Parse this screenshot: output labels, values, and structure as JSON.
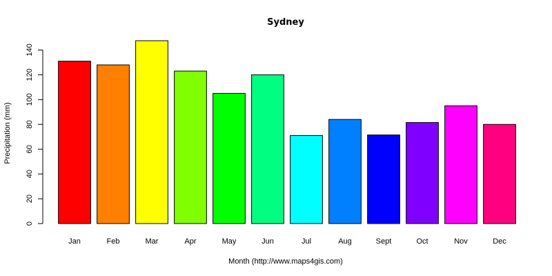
{
  "chart_data": {
    "type": "bar",
    "title": "Sydney",
    "xlabel": "Month (http://www.maps4gis.com)",
    "ylabel": "Precipitation (mm)",
    "categories": [
      "Jan",
      "Feb",
      "Mar",
      "Apr",
      "May",
      "Jun",
      "Jul",
      "Aug",
      "Sept",
      "Oct",
      "Nov",
      "Dec"
    ],
    "values": [
      131,
      128,
      147.5,
      123,
      105,
      120,
      71,
      84,
      71.5,
      81.5,
      95,
      80
    ],
    "colors": [
      "#FF0000",
      "#FF8000",
      "#FFFF00",
      "#80FF00",
      "#00FF00",
      "#00FF80",
      "#00FFFF",
      "#0080FF",
      "#0000FF",
      "#8000FF",
      "#FF00FF",
      "#FF0080"
    ],
    "ylim": [
      0,
      147.5
    ],
    "yticks": [
      0,
      20,
      40,
      60,
      80,
      100,
      120,
      140
    ],
    "grid": false,
    "legend": "none"
  }
}
